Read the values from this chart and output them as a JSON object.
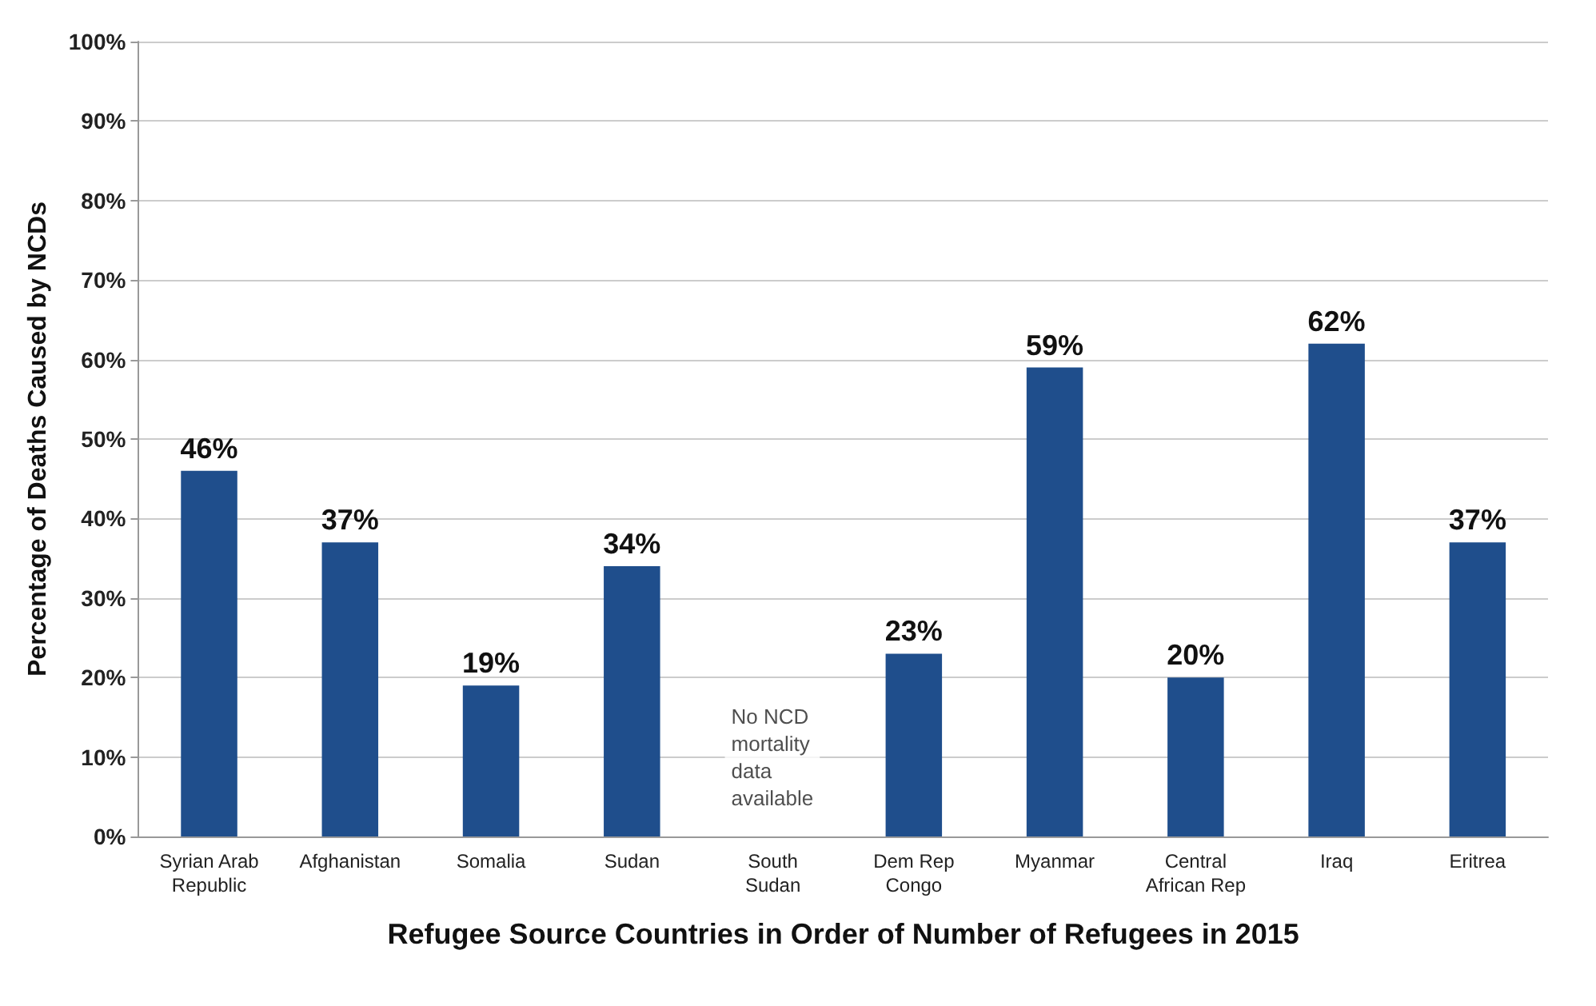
{
  "chart_data": {
    "type": "bar",
    "xlabel": "Refugee Source Countries in Order of Number of Refugees in 2015",
    "ylabel": "Percentage of Deaths Caused by NCDs",
    "categories": [
      "Syrian Arab\nRepublic",
      "Afghanistan",
      "Somalia",
      "Sudan",
      "South\nSudan",
      "Dem Rep\nCongo",
      "Myanmar",
      "Central\nAfrican Rep",
      "Iraq",
      "Eritrea"
    ],
    "values": [
      46,
      37,
      19,
      34,
      null,
      23,
      59,
      20,
      62,
      37
    ],
    "value_labels": [
      "46%",
      "37%",
      "19%",
      "34%",
      null,
      "23%",
      "59%",
      "20%",
      "62%",
      "37%"
    ],
    "color": "#1f4e8c",
    "ylim": [
      0,
      100
    ],
    "yticks": [
      {
        "value": 0,
        "label": "0%"
      },
      {
        "value": 10,
        "label": "10%"
      },
      {
        "value": 20,
        "label": "20%"
      },
      {
        "value": 30,
        "label": "30%"
      },
      {
        "value": 40,
        "label": "40%"
      },
      {
        "value": 50,
        "label": "50%"
      },
      {
        "value": 60,
        "label": "60%"
      },
      {
        "value": 70,
        "label": "70%"
      },
      {
        "value": 80,
        "label": "80%"
      },
      {
        "value": 90,
        "label": "90%"
      },
      {
        "value": 100,
        "label": "100%"
      }
    ],
    "annotations": [
      "No NCD\nmortality\ndata\navailable"
    ],
    "grid": true
  }
}
